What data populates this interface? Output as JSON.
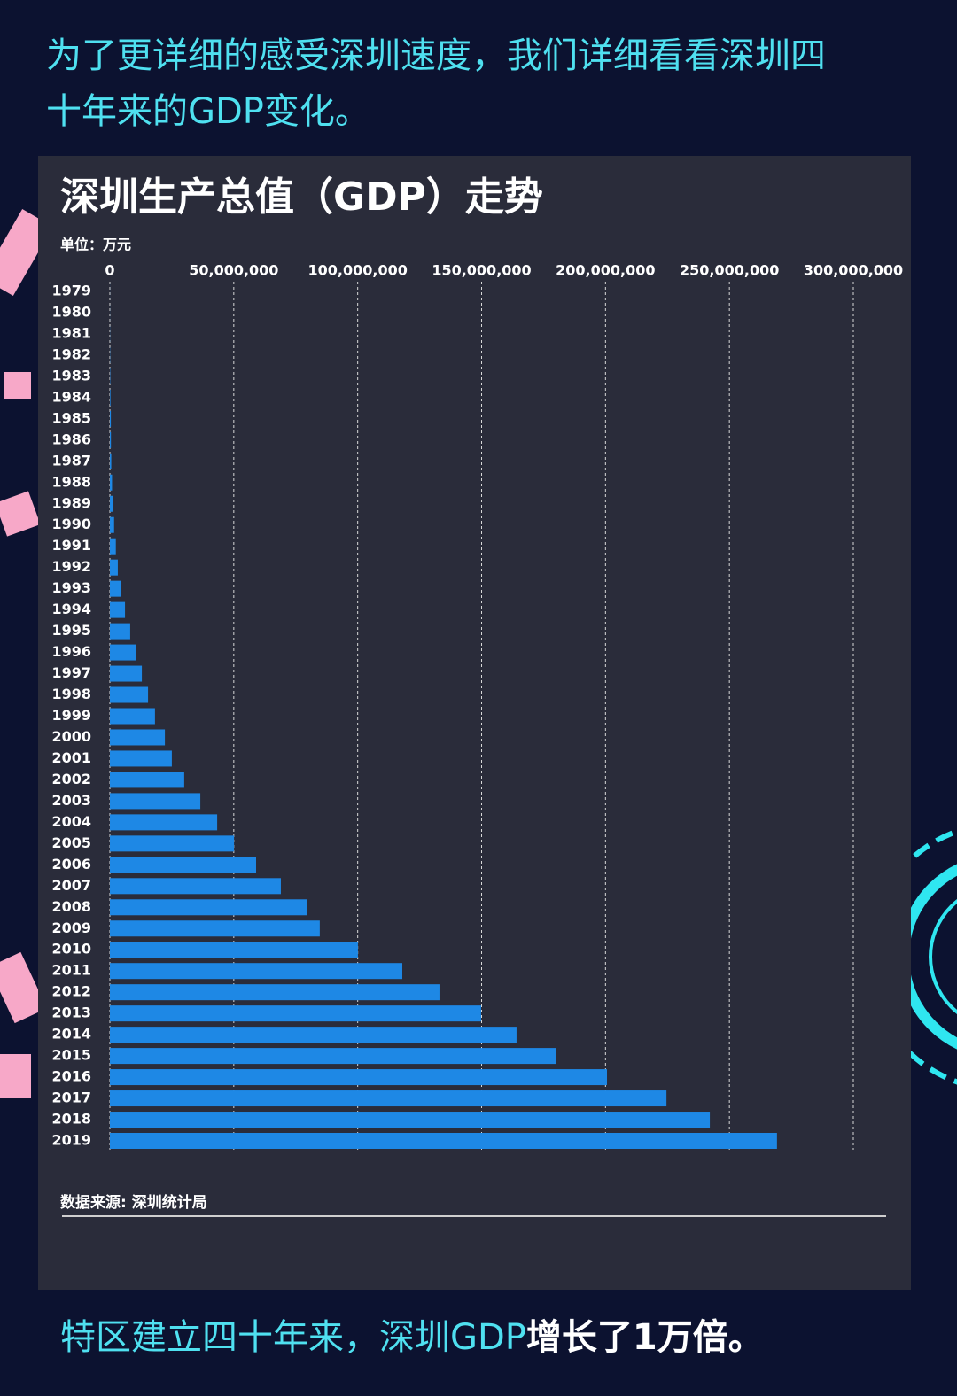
{
  "header": {
    "lines": [
      "为了更详细的感受深圳速度，我们详细看看深圳四",
      "十年来的GDP变化。"
    ]
  },
  "chart_data": {
    "type": "bar",
    "orientation": "horizontal",
    "title": "深圳生产总值（GDP）走势",
    "unit_label": "单位：万元",
    "source": "数据来源: 深圳统计局",
    "color": "#1e88e5",
    "categories": [
      "1979",
      "1980",
      "1981",
      "1982",
      "1983",
      "1984",
      "1985",
      "1986",
      "1987",
      "1988",
      "1989",
      "1990",
      "1991",
      "1992",
      "1993",
      "1994",
      "1995",
      "1996",
      "1997",
      "1998",
      "1999",
      "2000",
      "2001",
      "2002",
      "2003",
      "2004",
      "2005",
      "2006",
      "2007",
      "2008",
      "2009",
      "2010",
      "2011",
      "2012",
      "2013",
      "2014",
      "2015",
      "2016",
      "2017",
      "2018",
      "2019"
    ],
    "values": [
      19600,
      27000,
      50000,
      83000,
      130000,
      230000,
      390000,
      420000,
      560000,
      870000,
      1200000,
      1700000,
      2400000,
      3200000,
      4600000,
      6100000,
      8200000,
      10400000,
      12900000,
      15400000,
      18200000,
      22200000,
      25000000,
      30000000,
      36500000,
      43300000,
      50100000,
      59000000,
      69000000,
      79400000,
      84700000,
      100100000,
      118000000,
      133000000,
      149800000,
      164100000,
      179900000,
      200600000,
      224600000,
      242100000,
      269200000
    ],
    "xlim": [
      0,
      300000000
    ],
    "xticks": [
      0,
      {
        "value": 50000000,
        "label": "50,000,000"
      },
      {
        "value": 100000000,
        "label": "100,000,000"
      },
      {
        "value": 150000000,
        "label": "150,000,000"
      },
      {
        "value": 200000000,
        "label": "200,000,000"
      },
      {
        "value": 250000000,
        "label": "250,000,000"
      },
      {
        "value": 300000000,
        "label": "300,000,000"
      }
    ],
    "grid": true
  },
  "footer": {
    "parts": [
      "特区建立四十年来，深圳GDP",
      "增长了1万倍。"
    ]
  }
}
